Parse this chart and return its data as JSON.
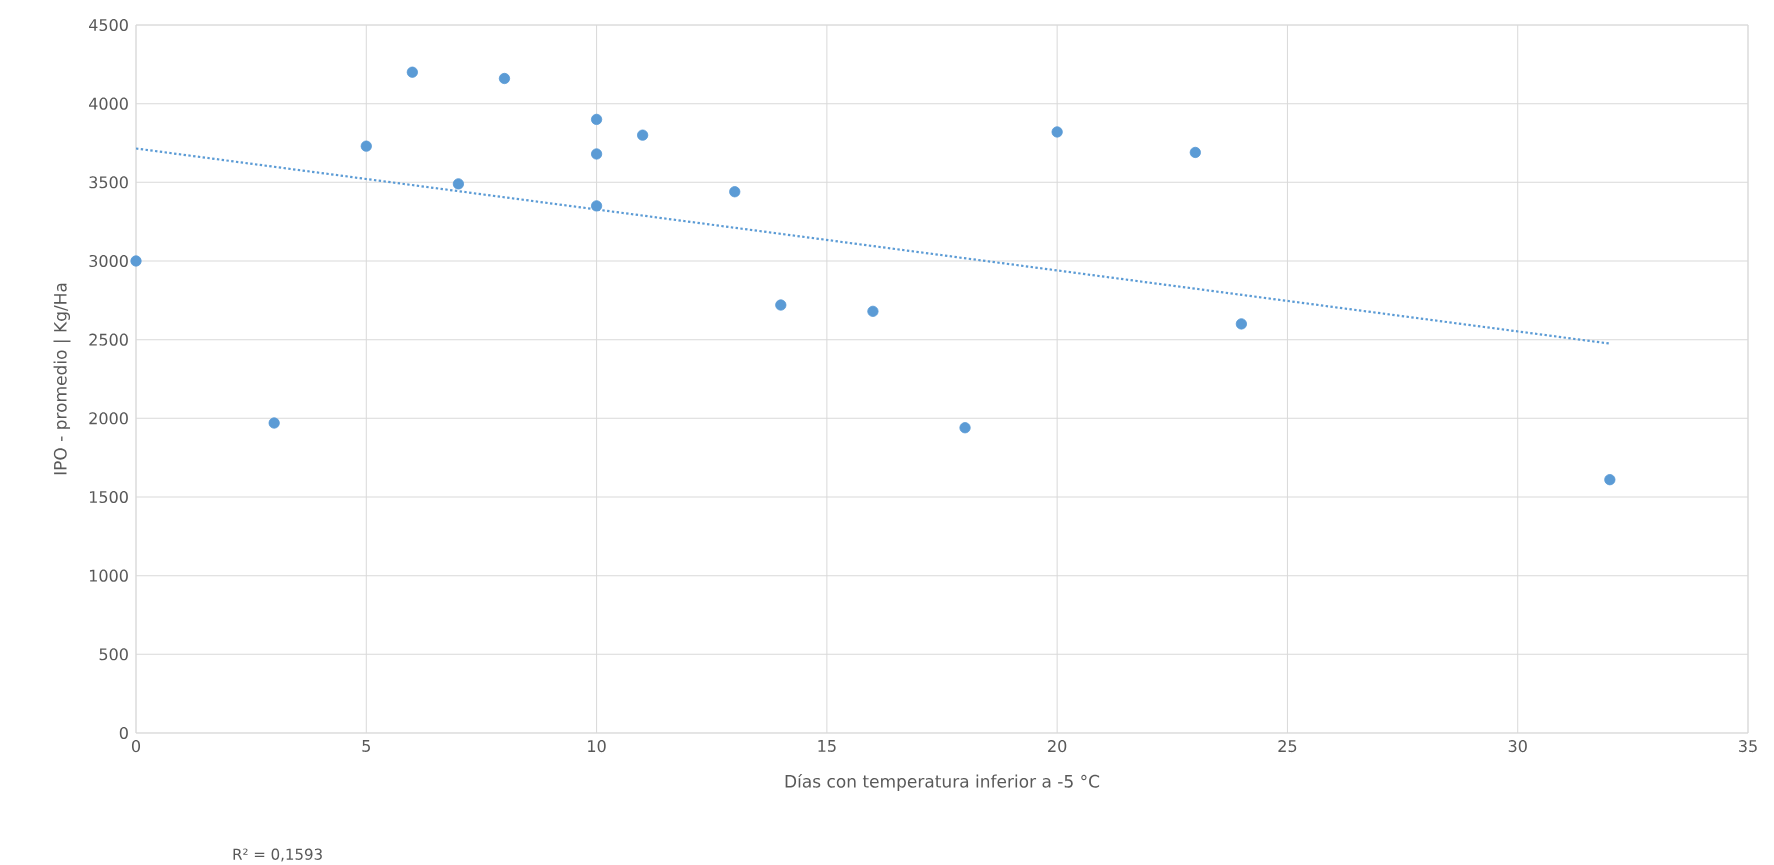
{
  "chart_data": {
    "type": "scatter",
    "xlabel": "Días con temperatura inferior a -5 °C",
    "ylabel": "IPO - promedio | Kg/Ha",
    "annotations": [
      "R² = 0,1593"
    ],
    "xlim": [
      0,
      35
    ],
    "xticks": [
      0,
      5,
      10,
      15,
      20,
      25,
      30,
      35
    ],
    "ylim": [
      0,
      4500
    ],
    "yticks": [
      0,
      500,
      1000,
      1500,
      2000,
      2500,
      3000,
      3500,
      4000,
      4500
    ],
    "grid": true,
    "marker": "circle",
    "series": [
      {
        "color": "#5b9bd5",
        "x": [
          0,
          3,
          5,
          6,
          7,
          8,
          10,
          10,
          10,
          11,
          13,
          14,
          16,
          18,
          20,
          23,
          24,
          32
        ],
        "values": [
          3000,
          1970,
          3730,
          4200,
          3490,
          4160,
          3900,
          3680,
          3350,
          3800,
          3440,
          2720,
          2680,
          1940,
          3820,
          3690,
          2600,
          1610
        ]
      },
      {
        "type": "line",
        "color": "#5b9bd5",
        "line_style": "dotted",
        "marker": "none",
        "x": [
          0,
          32
        ],
        "values": [
          3715,
          2475
        ]
      }
    ]
  }
}
